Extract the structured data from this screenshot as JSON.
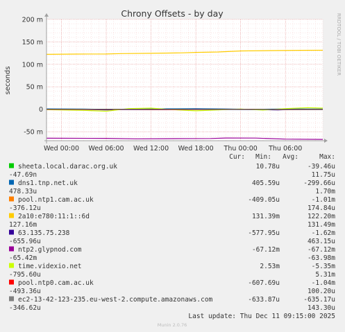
{
  "chart_data": {
    "type": "line",
    "title": "Chrony Offsets - by day",
    "ylabel": "seconds",
    "side_label": "RRDTOOL / TOBI OETIKER",
    "ylim": [
      -70,
      200
    ],
    "y_unit": "milliseconds",
    "yticks": [
      {
        "value": 200,
        "label": "200 m"
      },
      {
        "value": 150,
        "label": "150 m"
      },
      {
        "value": 100,
        "label": "100 m"
      },
      {
        "value": 50,
        "label": "50 m"
      },
      {
        "value": 0,
        "label": "0"
      },
      {
        "value": -50,
        "label": "-50 m"
      }
    ],
    "x_hours_range": [
      -2,
      35
    ],
    "x_hours_reference": "Wed 00:00",
    "xticks": [
      {
        "hour": 0,
        "label": "Wed 00:00"
      },
      {
        "hour": 6,
        "label": "Wed 06:00"
      },
      {
        "hour": 12,
        "label": "Wed 12:00"
      },
      {
        "hour": 18,
        "label": "Wed 18:00"
      },
      {
        "hour": 24,
        "label": "Thu 00:00"
      },
      {
        "hour": 30,
        "label": "Thu 06:00"
      }
    ],
    "legend_headers": {
      "cur": "Cur:",
      "min": "Min:",
      "avg": "Avg:",
      "max": "Max:"
    },
    "series": [
      {
        "name": "sheeta.local.darac.org.uk",
        "color": "#00cc00",
        "cur": "10.78u",
        "min": "-39.46u",
        "avg": "-47.69n",
        "max": "11.75u",
        "points": [
          [
            -2,
            0.01
          ],
          [
            4,
            -0.01
          ],
          [
            10,
            0.0
          ],
          [
            16,
            0.02
          ],
          [
            22,
            -0.02
          ],
          [
            28,
            0.0
          ],
          [
            35,
            0.01
          ]
        ]
      },
      {
        "name": "dns1.tnp.net.uk",
        "color": "#0066b3",
        "cur": "405.59u",
        "min": "-299.66u",
        "avg": "478.33u",
        "max": "1.70m",
        "points": [
          [
            -2,
            0.8
          ],
          [
            3,
            0.3
          ],
          [
            6,
            -0.2
          ],
          [
            10,
            0.5
          ],
          [
            14,
            0.9
          ],
          [
            18,
            1.2
          ],
          [
            22,
            0.6
          ],
          [
            26,
            -0.3
          ],
          [
            30,
            0.7
          ],
          [
            35,
            0.4
          ]
        ]
      },
      {
        "name": "pool.ntp1.cam.ac.uk",
        "color": "#ff8000",
        "cur": "-409.05u",
        "min": "-1.01m",
        "avg": "-376.12u",
        "max": "174.84u",
        "points": [
          [
            -2,
            -0.3
          ],
          [
            4,
            -0.6
          ],
          [
            8,
            -0.2
          ],
          [
            12,
            -0.8
          ],
          [
            16,
            -0.4
          ],
          [
            20,
            -0.5
          ],
          [
            24,
            0.1
          ],
          [
            28,
            -0.7
          ],
          [
            35,
            -0.4
          ]
        ]
      },
      {
        "name": "2a10:e780:11:1::6d",
        "color": "#ffcc00",
        "cur": "131.39m",
        "min": "122.20m",
        "avg": "127.16m",
        "max": "131.49m",
        "points": [
          [
            -2,
            122.3
          ],
          [
            2,
            122.8
          ],
          [
            6,
            123.0
          ],
          [
            8,
            124.0
          ],
          [
            12,
            124.5
          ],
          [
            16,
            125.5
          ],
          [
            18,
            126.5
          ],
          [
            21,
            127.5
          ],
          [
            24,
            129.8
          ],
          [
            28,
            130.5
          ],
          [
            32,
            131.2
          ],
          [
            35,
            131.4
          ]
        ]
      },
      {
        "name": "63.135.75.238",
        "color": "#330099",
        "cur": "-577.95u",
        "min": "-1.62m",
        "avg": "-655.96u",
        "max": "463.15u",
        "points": [
          [
            -2,
            -0.2
          ],
          [
            4,
            -0.8
          ],
          [
            6,
            -1.5
          ],
          [
            8,
            -0.5
          ],
          [
            14,
            -0.9
          ],
          [
            18,
            0.2
          ],
          [
            22,
            -0.6
          ],
          [
            26,
            -0.9
          ],
          [
            29,
            -1.6
          ],
          [
            31,
            -0.4
          ],
          [
            35,
            -0.6
          ]
        ]
      },
      {
        "name": "ntp2.glypnod.com",
        "color": "#990099",
        "cur": "-67.12m",
        "min": "-67.12m",
        "avg": "-65.42m",
        "max": "-63.98m",
        "points": [
          [
            -2,
            -64.5
          ],
          [
            6,
            -64.8
          ],
          [
            10,
            -65.8
          ],
          [
            14,
            -65.5
          ],
          [
            20,
            -65.0
          ],
          [
            22,
            -64.0
          ],
          [
            26,
            -64.2
          ],
          [
            30,
            -66.5
          ],
          [
            35,
            -67.1
          ]
        ]
      },
      {
        "name": "time.videxio.net",
        "color": "#ccff00",
        "cur": "2.53m",
        "min": "-5.35m",
        "avg": "-795.60u",
        "max": "5.31m",
        "points": [
          [
            -2,
            -1.0
          ],
          [
            3,
            -2.5
          ],
          [
            6,
            -4.5
          ],
          [
            9,
            1.5
          ],
          [
            12,
            2.5
          ],
          [
            15,
            -1.0
          ],
          [
            18,
            -3.5
          ],
          [
            21,
            -1.5
          ],
          [
            24,
            0.5
          ],
          [
            27,
            -2.0
          ],
          [
            30,
            1.5
          ],
          [
            33,
            3.5
          ],
          [
            35,
            2.5
          ]
        ]
      },
      {
        "name": "pool.ntp0.cam.ac.uk",
        "color": "#ff0000",
        "cur": "-607.69u",
        "min": "-1.04m",
        "avg": "-493.36u",
        "max": "100.20u",
        "points": [
          [
            -2,
            -0.4
          ],
          [
            5,
            -0.6
          ],
          [
            10,
            -0.3
          ],
          [
            15,
            -0.8
          ],
          [
            20,
            -0.5
          ],
          [
            25,
            -0.2
          ],
          [
            30,
            -0.7
          ],
          [
            35,
            -0.6
          ]
        ]
      },
      {
        "name": "ec2-13-42-123-235.eu-west-2.compute.amazonaws.com",
        "color": "#808080",
        "cur": "-633.87u",
        "min": "-635.17u",
        "avg": "-346.62u",
        "max": "143.30u",
        "points": [
          [
            -2,
            -0.1
          ],
          [
            6,
            -0.3
          ],
          [
            12,
            0.1
          ],
          [
            18,
            -0.4
          ],
          [
            24,
            -0.5
          ],
          [
            30,
            -0.6
          ],
          [
            35,
            -0.63
          ]
        ]
      }
    ],
    "footer_update": "Last update: Thu Dec 11 09:15:00 2025",
    "footer_version": "Munin 2.0.76"
  }
}
